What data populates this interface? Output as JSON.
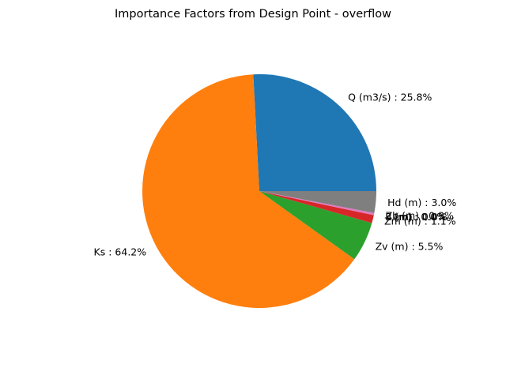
{
  "chart_data": {
    "type": "pie",
    "title": "Importance Factors from Design Point - overflow",
    "start_angle_deg": 0,
    "direction": "counterclockwise",
    "label_format": "{name} : {pct}%",
    "slices": [
      {
        "name": "Q (m3/s)",
        "value": 25.8,
        "color": "#1f77b4"
      },
      {
        "name": "Ks",
        "value": 64.2,
        "color": "#ff7f0e"
      },
      {
        "name": "Zv (m)",
        "value": 5.5,
        "color": "#2ca02c"
      },
      {
        "name": "Zm (m)",
        "value": 1.1,
        "color": "#d62728"
      },
      {
        "name": "B (m)",
        "value": 0.0,
        "color": "#9467bd"
      },
      {
        "name": "L (m)",
        "value": 0.0,
        "color": "#8c564b"
      },
      {
        "name": "Zb (m)",
        "value": 0.3,
        "color": "#e377c2"
      },
      {
        "name": "Hd (m)",
        "value": 3.0,
        "color": "#7f7f7f"
      }
    ]
  }
}
